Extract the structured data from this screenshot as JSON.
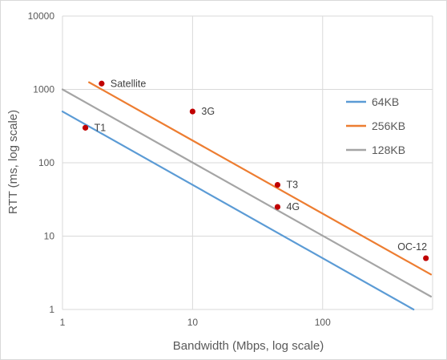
{
  "chart_data": {
    "type": "scatter",
    "xlabel": "Bandwidth (Mbps, log scale)",
    "ylabel": "RTT (ms, log scale)",
    "x_scale": "log",
    "y_scale": "log",
    "xlim": [
      1,
      700
    ],
    "ylim": [
      1,
      10000
    ],
    "x_ticks": [
      "1",
      "10",
      "100"
    ],
    "y_ticks": [
      "1",
      "10",
      "100",
      "1000",
      "10000"
    ],
    "grid": true,
    "legend_position": "right",
    "lines": [
      {
        "name": "64KB",
        "color": "#5b9bd5",
        "x": [
          1,
          500
        ],
        "y": [
          500,
          1
        ]
      },
      {
        "name": "256KB",
        "color": "#ed7d31",
        "x": [
          1.6,
          680
        ],
        "y": [
          1250,
          3
        ]
      },
      {
        "name": "128KB",
        "color": "#a5a5a5",
        "x": [
          1,
          680
        ],
        "y": [
          1000,
          1.5
        ]
      }
    ],
    "points": [
      {
        "label": "T1",
        "x": 1.5,
        "y": 300
      },
      {
        "label": "Satellite",
        "x": 2,
        "y": 1200
      },
      {
        "label": "3G",
        "x": 10,
        "y": 500
      },
      {
        "label": "T3",
        "x": 45,
        "y": 50
      },
      {
        "label": "4G",
        "x": 45,
        "y": 25
      },
      {
        "label": "OC-12",
        "x": 622,
        "y": 5
      }
    ],
    "point_color": "#c00000"
  }
}
